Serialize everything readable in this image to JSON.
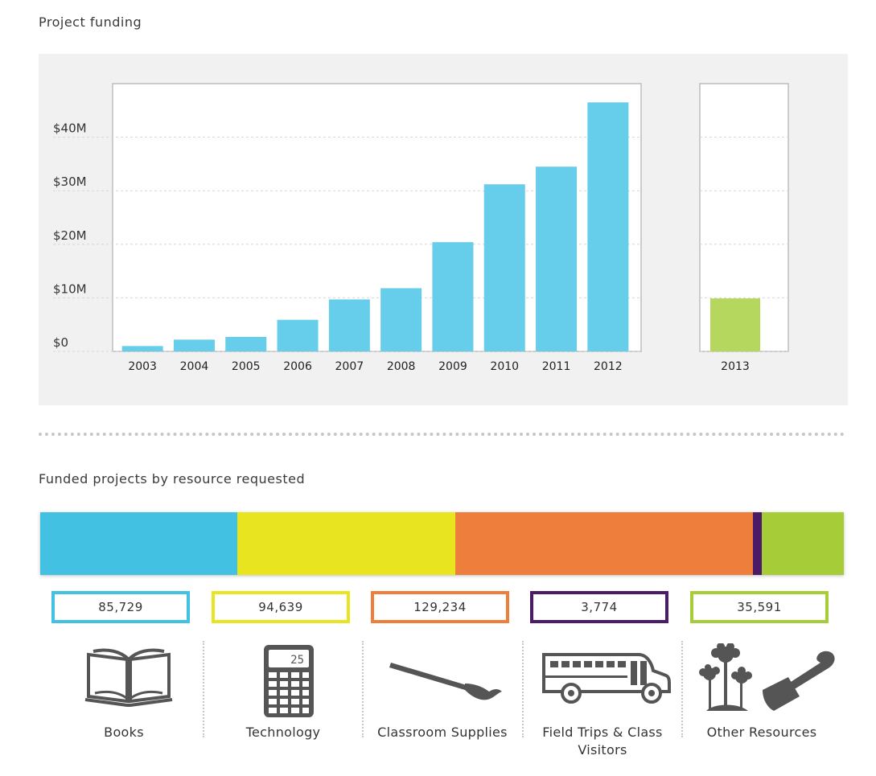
{
  "funding_title": "Project funding",
  "resource_title": "Funded projects by resource requested",
  "chart_data": [
    {
      "type": "bar",
      "title": "Project funding",
      "xlabel": "",
      "ylabel": "",
      "ylim": [
        0,
        50
      ],
      "yticks": [
        0,
        10,
        20,
        30,
        40
      ],
      "ytick_labels": [
        "$0",
        "$10M",
        "$20M",
        "$30M",
        "$40M"
      ],
      "grid": true,
      "panels": [
        {
          "categories": [
            "2003",
            "2004",
            "2005",
            "2006",
            "2007",
            "2008",
            "2009",
            "2010",
            "2011",
            "2012"
          ],
          "values": [
            1.0,
            2.2,
            2.7,
            5.9,
            9.7,
            11.8,
            20.4,
            31.2,
            34.5,
            46.5
          ],
          "color": "#66cdea"
        },
        {
          "categories": [
            "2013"
          ],
          "values": [
            9.9
          ],
          "color": "#b5d75e"
        }
      ]
    },
    {
      "type": "bar",
      "orientation": "horizontal-stacked",
      "title": "Funded projects by resource requested",
      "categories": [
        "Books",
        "Technology",
        "Classroom Supplies",
        "Field Trips & Class Visitors",
        "Other Resources"
      ],
      "values": [
        85729,
        94639,
        129234,
        3774,
        35591
      ],
      "value_labels": [
        "85,729",
        "94,639",
        "129,234",
        "3,774",
        "35,591"
      ],
      "colors": [
        "#42c1e2",
        "#e8e520",
        "#ee7e3b",
        "#4b1b68",
        "#a6cc38"
      ]
    }
  ],
  "resources": [
    {
      "label": "Books",
      "count": "85,729",
      "icon": "open-book-icon",
      "color": "#42c1e2"
    },
    {
      "label": "Technology",
      "count": "94,639",
      "icon": "calculator-icon",
      "color": "#e8e520",
      "icon_text": "25"
    },
    {
      "label": "Classroom Supplies",
      "count": "129,234",
      "icon": "paintbrush-icon",
      "color": "#ee7e3b"
    },
    {
      "label": "Field Trips & Class Visitors",
      "count": "3,774",
      "icon": "school-bus-icon",
      "color": "#4b1b68"
    },
    {
      "label": "Other Resources",
      "count": "35,591",
      "icon": "plants-trowel-icon",
      "color": "#a6cc38"
    }
  ]
}
